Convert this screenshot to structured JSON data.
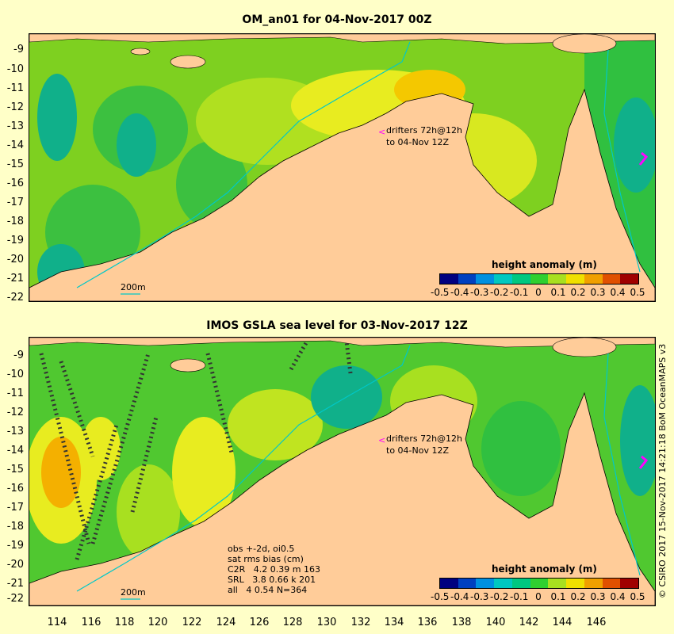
{
  "panels": [
    {
      "title": "OM_an01 for 04-Nov-2017 00Z",
      "drifter_note_line1": "drifters 72h@12h",
      "drifter_note_line2": "to 04-Nov 12Z",
      "isobath_label": "200m",
      "colorbar_title": "height anomaly (m)"
    },
    {
      "title": "IMOS GSLA sea level  for 03-Nov-2017 12Z",
      "drifter_note_line1": "drifters 72h@12h",
      "drifter_note_line2": "to 04-Nov 12Z",
      "isobath_label": "200m",
      "colorbar_title": "height anomaly (m)",
      "stats": {
        "line1": "obs +-2d, oi0.5",
        "line2": "sat rms bias (cm)",
        "line3": "C2R   4.2 0.39 m 163",
        "line4": "SRL   3.8 0.66 k 201",
        "line5": "all   4 0.54 N=364"
      }
    }
  ],
  "y_ticks": [
    "-9",
    "-10",
    "-11",
    "-12",
    "-13",
    "-14",
    "-15",
    "-16",
    "-17",
    "-18",
    "-19",
    "-20",
    "-21",
    "-22"
  ],
  "x_ticks": [
    "114",
    "116",
    "118",
    "120",
    "122",
    "124",
    "126",
    "128",
    "130",
    "132",
    "134",
    "136",
    "138",
    "140",
    "142",
    "144",
    "146"
  ],
  "colorbar_labels": [
    "-0.5",
    "-0.4",
    "-0.3",
    "-0.2",
    "-0.1",
    "0",
    "0.1",
    "0.2",
    "0.3",
    "0.4",
    "0.5"
  ],
  "colorbar_colors": [
    "#000080",
    "#0040c0",
    "#0090e0",
    "#00c8c0",
    "#00c880",
    "#30d030",
    "#a8e020",
    "#f0e000",
    "#f0a000",
    "#e05000",
    "#a00000"
  ],
  "credit": "© CSIRO 2017  15-Nov-2017 14:21:18 BoM OceanMAPS v3",
  "colors": {
    "background": "#ffffc8",
    "land": "#ffcc99",
    "shelf_edge": "#00c8c8",
    "drifter": "#ff00ff"
  }
}
